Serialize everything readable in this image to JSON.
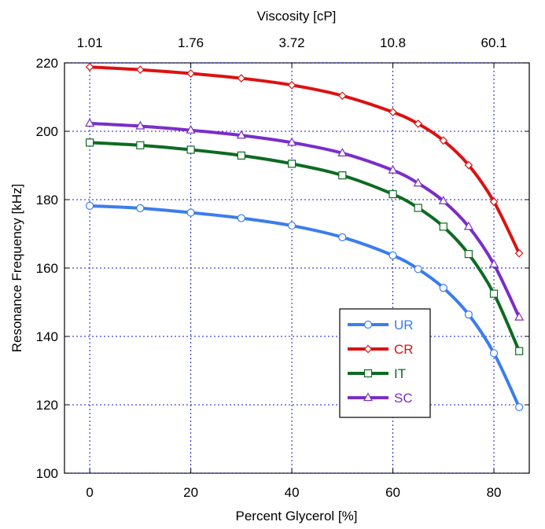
{
  "chart_data": {
    "type": "line",
    "xlabel": "Percent Glycerol [%]",
    "ylabel": "Resonance Frequency [kHz]",
    "top_xlabel": "Viscosity [cP]",
    "xlim": [
      -5,
      87
    ],
    "ylim": [
      100,
      220
    ],
    "x_ticks": [
      "0",
      "20",
      "40",
      "60",
      "80"
    ],
    "y_ticks": [
      "100",
      "120",
      "140",
      "160",
      "180",
      "200",
      "220"
    ],
    "top_ticks": [
      {
        "x": 0,
        "label": "1.01"
      },
      {
        "x": 20,
        "label": "1.76"
      },
      {
        "x": 40,
        "label": "3.72"
      },
      {
        "x": 60,
        "label": "10.8"
      },
      {
        "x": 80,
        "label": "60.1"
      }
    ],
    "grid": true,
    "legend_position": "lower-right",
    "x": [
      0,
      10,
      20,
      30,
      40,
      50,
      60,
      65,
      70,
      75,
      80,
      85
    ],
    "series": [
      {
        "name": "UR",
        "color": "#3b7ded",
        "marker": "circle",
        "values": [
          178.2,
          177.5,
          176.2,
          174.6,
          172.4,
          169.0,
          163.7,
          159.7,
          154.2,
          146.4,
          135.1,
          119.3
        ]
      },
      {
        "name": "CR",
        "color": "#dd1111",
        "marker": "diamond",
        "values": [
          218.8,
          218.0,
          216.9,
          215.5,
          213.5,
          210.4,
          205.6,
          202.2,
          197.3,
          190.1,
          179.4,
          164.3
        ]
      },
      {
        "name": "IT",
        "color": "#0d6b22",
        "marker": "square",
        "values": [
          196.7,
          195.9,
          194.6,
          192.9,
          190.5,
          187.1,
          181.6,
          177.6,
          172.1,
          164.1,
          152.5,
          135.7
        ]
      },
      {
        "name": "SC",
        "color": "#7a2ec8",
        "marker": "triangle",
        "values": [
          202.3,
          201.5,
          200.3,
          198.8,
          196.7,
          193.6,
          188.6,
          184.8,
          179.6,
          172.1,
          161.1,
          145.6
        ]
      }
    ]
  }
}
